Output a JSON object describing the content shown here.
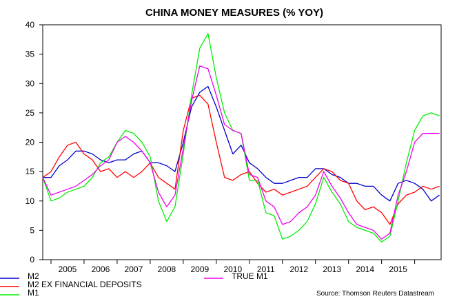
{
  "chart_data": {
    "type": "line",
    "title": "CHINA MONEY MEASURES (% YOY)",
    "source": "Source: Thomson Reuters Datastream",
    "xlabel": "",
    "ylabel": "",
    "xlim": [
      2004.75,
      2016.8
    ],
    "ylim": [
      0,
      40
    ],
    "yticks": [
      0,
      5,
      10,
      15,
      20,
      25,
      30,
      35,
      40
    ],
    "year_labels": [
      "2005",
      "2006",
      "2007",
      "2008",
      "2009",
      "2010",
      "2011",
      "2012",
      "2013",
      "2014",
      "2015"
    ],
    "grid": false,
    "legend_position": "bottom-left",
    "series": [
      {
        "name": "M2",
        "color": "#0000cc",
        "x": [
          2004.75,
          2005.0,
          2005.25,
          2005.5,
          2005.75,
          2006.0,
          2006.25,
          2006.5,
          2006.75,
          2007.0,
          2007.25,
          2007.5,
          2007.75,
          2008.0,
          2008.25,
          2008.5,
          2008.75,
          2009.0,
          2009.25,
          2009.5,
          2009.75,
          2010.0,
          2010.25,
          2010.5,
          2010.75,
          2011.0,
          2011.25,
          2011.5,
          2011.75,
          2012.0,
          2012.25,
          2012.5,
          2012.75,
          2013.0,
          2013.25,
          2013.5,
          2013.75,
          2014.0,
          2014.25,
          2014.5,
          2014.75,
          2015.0,
          2015.25,
          2015.5,
          2015.75,
          2016.0,
          2016.25,
          2016.5,
          2016.75
        ],
        "values": [
          14.0,
          14.0,
          16.0,
          17.0,
          18.5,
          18.5,
          18.0,
          17.0,
          16.5,
          17.0,
          17.0,
          18.0,
          18.5,
          16.5,
          16.5,
          16.0,
          15.0,
          20.0,
          26.0,
          28.5,
          29.5,
          26.0,
          22.0,
          18.0,
          19.5,
          16.5,
          15.5,
          14.0,
          13.0,
          13.0,
          13.5,
          14.0,
          14.0,
          15.5,
          15.5,
          14.5,
          14.0,
          13.0,
          13.0,
          12.5,
          12.5,
          11.0,
          10.0,
          13.0,
          13.5,
          13.0,
          12.0,
          10.0,
          11.0
        ]
      },
      {
        "name": "M2 EX FINANCIAL DEPOSITS",
        "color": "#ff0000",
        "x": [
          2004.75,
          2005.0,
          2005.25,
          2005.5,
          2005.75,
          2006.0,
          2006.25,
          2006.5,
          2006.75,
          2007.0,
          2007.25,
          2007.5,
          2007.75,
          2008.0,
          2008.25,
          2008.5,
          2008.75,
          2009.0,
          2009.25,
          2009.5,
          2009.75,
          2010.0,
          2010.25,
          2010.5,
          2010.75,
          2011.0,
          2011.25,
          2011.5,
          2011.75,
          2012.0,
          2012.25,
          2012.5,
          2012.75,
          2013.0,
          2013.25,
          2013.5,
          2013.75,
          2014.0,
          2014.25,
          2014.5,
          2014.75,
          2015.0,
          2015.25,
          2015.5,
          2015.75,
          2016.0,
          2016.25,
          2016.5,
          2016.75
        ],
        "values": [
          14.0,
          15.0,
          17.5,
          19.5,
          20.0,
          18.0,
          17.0,
          15.0,
          15.5,
          14.0,
          15.0,
          14.0,
          15.0,
          16.5,
          14.0,
          13.0,
          12.0,
          22.0,
          27.5,
          28.0,
          26.5,
          20.0,
          14.0,
          13.5,
          14.5,
          15.0,
          13.0,
          11.5,
          12.0,
          11.0,
          11.5,
          12.0,
          12.5,
          14.0,
          15.5,
          15.0,
          13.5,
          13.0,
          10.0,
          8.5,
          9.0,
          8.0,
          6.0,
          9.5,
          11.0,
          11.5,
          12.5,
          12.0,
          12.5
        ]
      },
      {
        "name": "M1",
        "color": "#00ee00",
        "x": [
          2004.75,
          2005.0,
          2005.25,
          2005.5,
          2005.75,
          2006.0,
          2006.25,
          2006.5,
          2006.75,
          2007.0,
          2007.25,
          2007.5,
          2007.75,
          2008.0,
          2008.25,
          2008.5,
          2008.75,
          2009.0,
          2009.25,
          2009.5,
          2009.75,
          2010.0,
          2010.25,
          2010.5,
          2010.75,
          2011.0,
          2011.25,
          2011.5,
          2011.75,
          2012.0,
          2012.25,
          2012.5,
          2012.75,
          2013.0,
          2013.25,
          2013.5,
          2013.75,
          2014.0,
          2014.25,
          2014.5,
          2014.75,
          2015.0,
          2015.25,
          2015.5,
          2015.75,
          2016.0,
          2016.25,
          2016.5,
          2016.75
        ],
        "values": [
          14.0,
          10.0,
          10.5,
          11.5,
          12.0,
          12.5,
          14.0,
          16.5,
          17.5,
          20.0,
          22.0,
          21.5,
          20.0,
          17.5,
          10.0,
          6.5,
          9.0,
          18.0,
          28.0,
          36.0,
          38.5,
          31.0,
          25.0,
          22.0,
          21.5,
          13.5,
          13.5,
          8.0,
          7.5,
          3.5,
          4.0,
          5.0,
          6.5,
          9.5,
          14.0,
          11.5,
          9.5,
          6.5,
          5.5,
          5.0,
          4.5,
          3.0,
          4.0,
          10.0,
          16.5,
          22.0,
          24.5,
          25.0,
          24.5
        ]
      },
      {
        "name": "TRUE M1",
        "color": "#ee00ee",
        "x": [
          2004.75,
          2005.0,
          2005.25,
          2005.5,
          2005.75,
          2006.0,
          2006.25,
          2006.5,
          2006.75,
          2007.0,
          2007.25,
          2007.5,
          2007.75,
          2008.0,
          2008.25,
          2008.5,
          2008.75,
          2009.0,
          2009.25,
          2009.5,
          2009.75,
          2010.0,
          2010.25,
          2010.5,
          2010.75,
          2011.0,
          2011.25,
          2011.5,
          2011.75,
          2012.0,
          2012.25,
          2012.5,
          2012.75,
          2013.0,
          2013.25,
          2013.5,
          2013.75,
          2014.0,
          2014.25,
          2014.5,
          2014.75,
          2015.0,
          2015.25,
          2015.5,
          2015.75,
          2016.0,
          2016.25,
          2016.5,
          2016.75
        ],
        "values": [
          14.0,
          11.0,
          11.5,
          12.0,
          12.5,
          13.5,
          14.5,
          16.0,
          17.0,
          20.0,
          21.0,
          20.0,
          18.5,
          16.5,
          11.5,
          9.0,
          11.0,
          19.0,
          27.0,
          33.0,
          32.5,
          28.0,
          23.0,
          22.0,
          21.5,
          14.5,
          14.0,
          10.0,
          9.0,
          6.0,
          6.5,
          8.0,
          9.0,
          11.0,
          15.0,
          12.5,
          10.5,
          8.0,
          6.0,
          5.5,
          5.0,
          3.5,
          4.5,
          11.0,
          15.0,
          20.0,
          21.5,
          21.5,
          21.5
        ]
      }
    ]
  }
}
